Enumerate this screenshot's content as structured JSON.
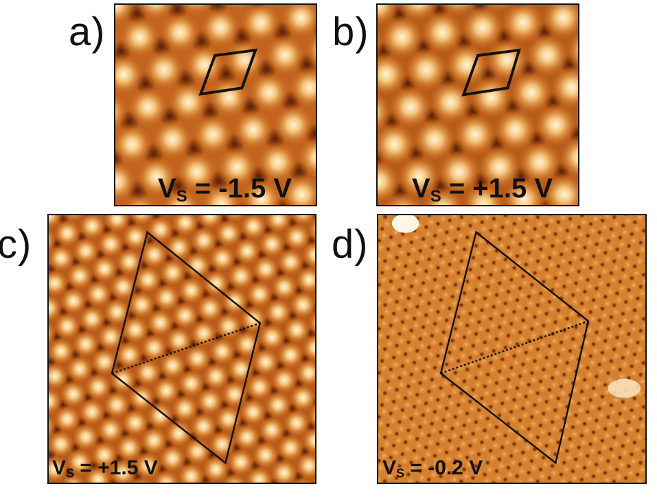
{
  "panels": [
    {
      "id": "a",
      "letter": "a)",
      "voltage_prefix": "V",
      "voltage_sub": "S",
      "voltage_value": " = -1.5 V"
    },
    {
      "id": "b",
      "letter": "b)",
      "voltage_prefix": "V",
      "voltage_sub": "S",
      "voltage_value": " = +1.5 V"
    },
    {
      "id": "c",
      "letter": "c)",
      "voltage_prefix": "V",
      "voltage_sub": "S",
      "voltage_value": " = +1.5 V"
    },
    {
      "id": "d",
      "letter": "d)",
      "voltage_prefix": "V",
      "voltage_sub": "S",
      "voltage_value": " = -0.2 V"
    }
  ],
  "colors": {
    "stm_dark": "#7a2f08",
    "stm_mid": "#c86a1e",
    "stm_bright": "#fff0c8",
    "outline": "#111111"
  }
}
